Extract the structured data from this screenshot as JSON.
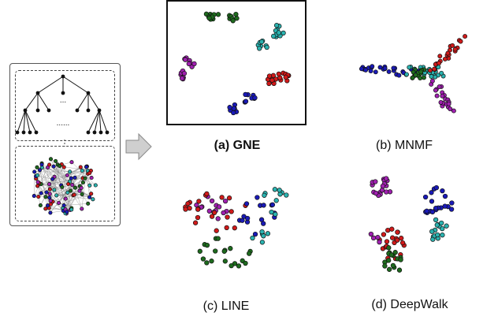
{
  "colors": {
    "green": "#1e6b1e",
    "teal": "#2bb3b0",
    "purple": "#a020b0",
    "red": "#d11a1a",
    "blue": "#1a1ab8",
    "arrow": "#c9c9c9",
    "edge": "#888888"
  },
  "tree": {
    "dots_mid": "...",
    "dots_low": "......"
  },
  "panels": [
    {
      "id": "gne",
      "caption": "(a) GNE",
      "bold": true
    },
    {
      "id": "mnmf",
      "caption": "(b) MNMF",
      "bold": false
    },
    {
      "id": "line",
      "caption": "(c) LINE",
      "bold": false
    },
    {
      "id": "deepwalk",
      "caption": "(d) DeepWalk",
      "bold": false
    }
  ],
  "icons": {
    "arrow": "right-arrow-icon"
  }
}
